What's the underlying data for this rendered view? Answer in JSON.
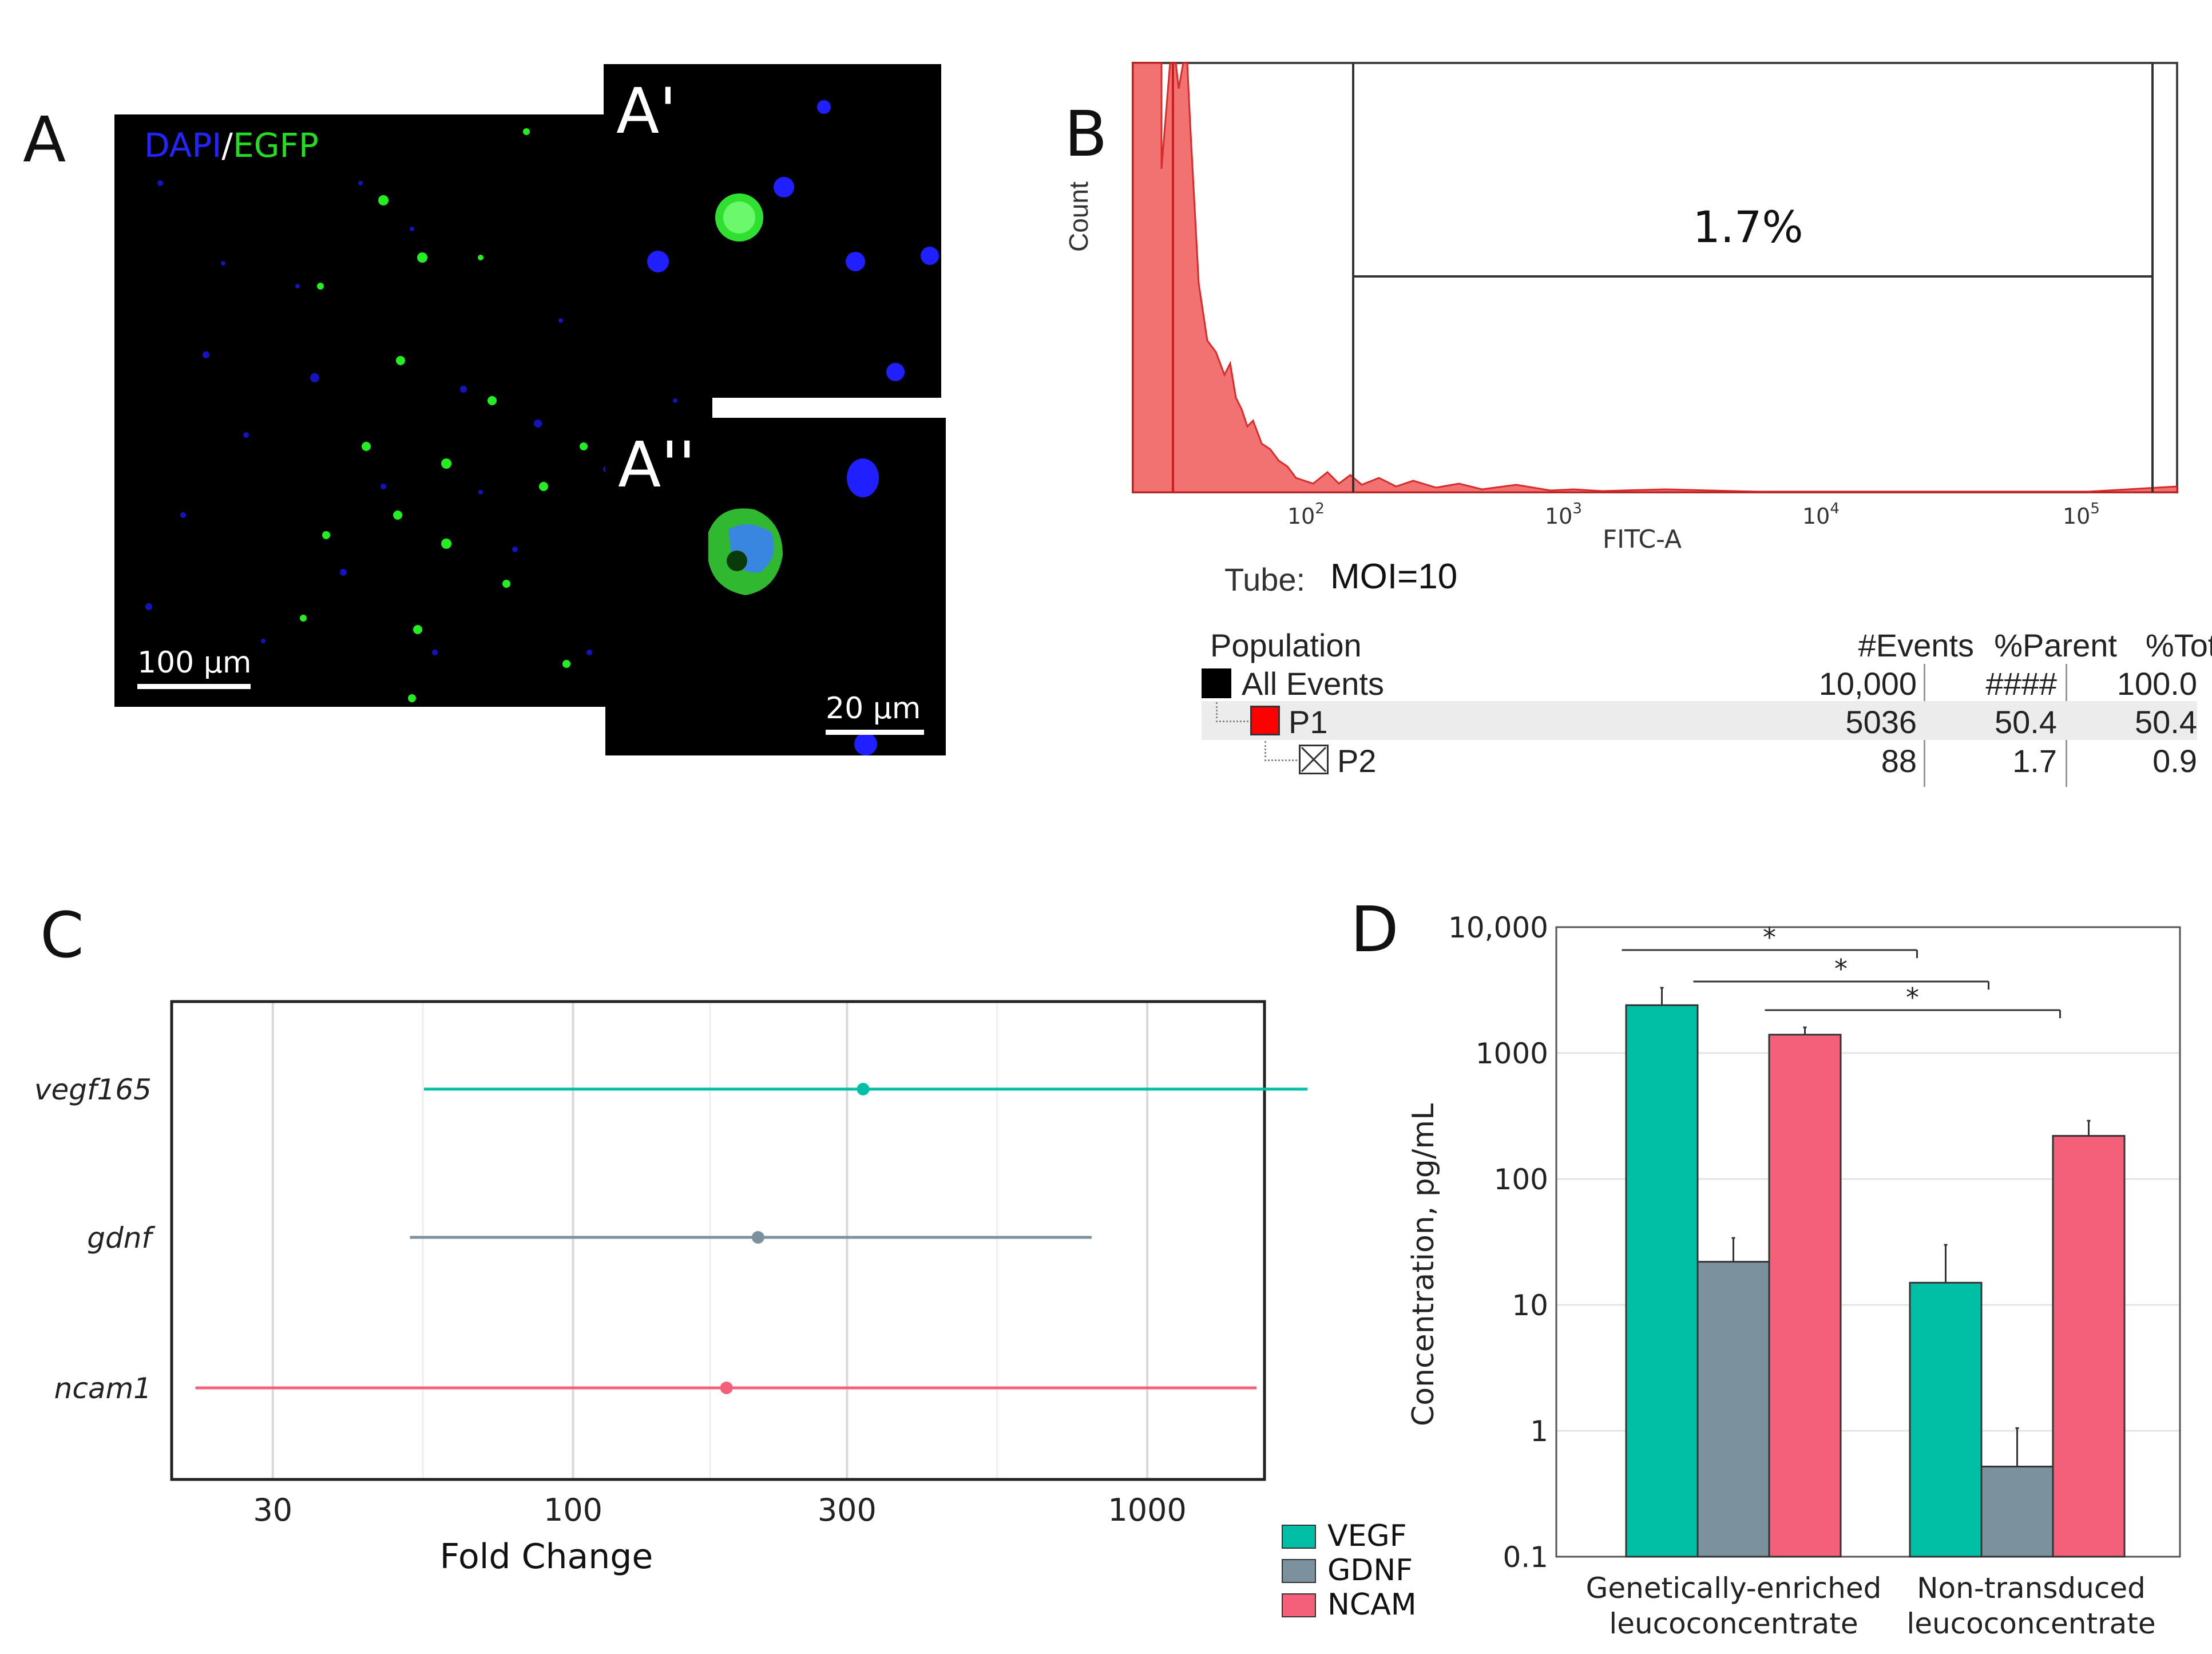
{
  "panels": {
    "a": "A",
    "b": "B",
    "c": "C",
    "d": "D"
  },
  "panel_a": {
    "stain_blue": "DAPI",
    "stain_sep": "/",
    "stain_green": "EGFP",
    "scale_main": "100 µm",
    "inset1_label": "A'",
    "inset2_label": "A''",
    "scale_inset": "20 µm"
  },
  "panel_b": {
    "gate_percent": "1.7%",
    "y_axis": "Count",
    "x_axis": "FITC-A",
    "x_ticks": [
      "10",
      "10",
      "10",
      "10"
    ],
    "x_exps": [
      "2",
      "3",
      "4",
      "5"
    ],
    "tube_label": "Tube:",
    "tube_value": "MOI=10",
    "table_headers": [
      "Population",
      "#Events",
      "%Parent",
      "%Total"
    ],
    "rows": [
      {
        "name": "All Events",
        "events": "10,000",
        "parent": "####",
        "total": "100.0"
      },
      {
        "name": "P1",
        "events": "5036",
        "parent": "50.4",
        "total": "50.4"
      },
      {
        "name": "P2",
        "events": "88",
        "parent": "1.7",
        "total": "0.9"
      }
    ]
  },
  "colors": {
    "vegf": "#00bfa5",
    "gdnf": "#7b929e",
    "ncam": "#f4607a",
    "flow": "#f26b6b"
  },
  "legend": [
    "VEGF",
    "GDNF",
    "NCAM"
  ],
  "chart_data": [
    {
      "type": "scatter",
      "title": "",
      "xlabel": "Fold Change",
      "xscale": "log",
      "xlim": [
        20,
        1600
      ],
      "x_ticks": [
        30,
        100,
        300,
        1000
      ],
      "x_tick_labels": [
        "30",
        "100",
        "300",
        "1000"
      ],
      "categories": [
        "vegf165",
        "gdnf",
        "ncam1"
      ],
      "series": [
        {
          "name": "vegf165",
          "value": 320,
          "low": 55,
          "high": 1900,
          "color_key": "vegf"
        },
        {
          "name": "gdnf",
          "value": 210,
          "low": 52,
          "high": 800,
          "color_key": "gdnf"
        },
        {
          "name": "ncam1",
          "value": 185,
          "low": 22,
          "high": 1550,
          "color_key": "ncam"
        }
      ]
    },
    {
      "type": "bar",
      "yscale": "log",
      "ylabel": "Concentration, pg/mL",
      "ylim": [
        0.1,
        10000
      ],
      "y_ticks": [
        0.1,
        1,
        10,
        100,
        1000,
        10000
      ],
      "y_tick_labels": [
        "0.1",
        "1",
        "10",
        "100",
        "1000",
        "10,000"
      ],
      "categories": [
        "Genetically-enriched leucoconcentrate",
        "Non-transduced leucoconcentrate"
      ],
      "category_lines": [
        [
          "Genetically-enriched",
          "leucoconcentrate"
        ],
        [
          "Non-transduced",
          "leucoconcentrate"
        ]
      ],
      "series": [
        {
          "name": "VEGF",
          "values": [
            2400,
            15
          ],
          "errors": [
            3300,
            30
          ],
          "color_key": "vegf"
        },
        {
          "name": "GDNF",
          "values": [
            22,
            0.52
          ],
          "errors": [
            34,
            1.05
          ],
          "color_key": "gdnf"
        },
        {
          "name": "NCAM",
          "values": [
            1400,
            220
          ],
          "errors": [
            1600,
            290
          ],
          "color_key": "ncam"
        }
      ],
      "significance": [
        "*",
        "*",
        "*"
      ]
    }
  ]
}
